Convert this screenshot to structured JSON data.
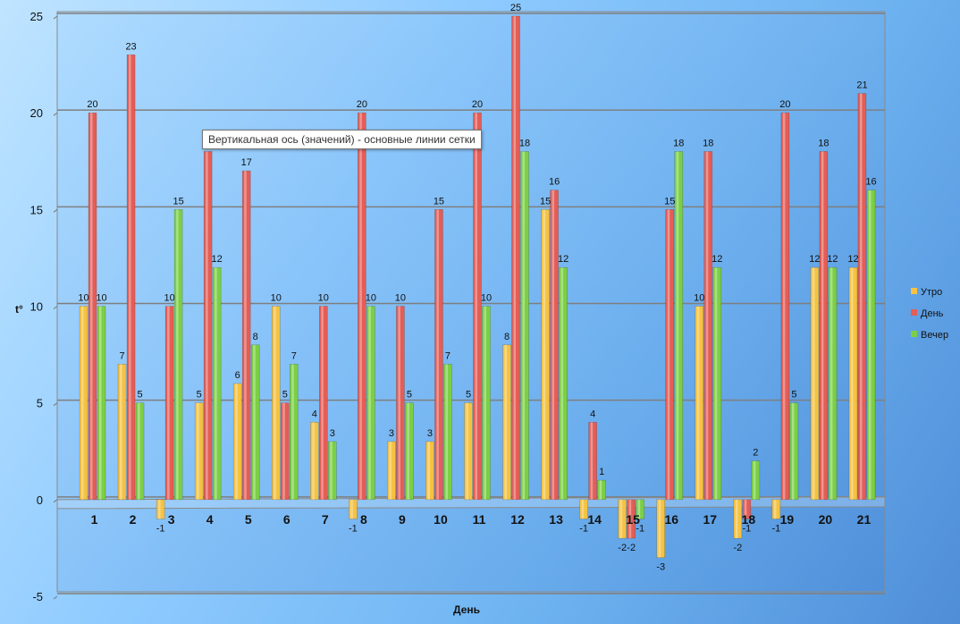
{
  "chart_data": {
    "type": "bar",
    "categories": [
      "1",
      "2",
      "3",
      "4",
      "5",
      "6",
      "7",
      "8",
      "9",
      "10",
      "11",
      "12",
      "13",
      "14",
      "15",
      "16",
      "17",
      "18",
      "19",
      "20",
      "21"
    ],
    "series": [
      {
        "name": "Утро",
        "color": "#f5c242",
        "values": [
          10,
          7,
          -1,
          5,
          6,
          10,
          4,
          -1,
          3,
          3,
          5,
          8,
          15,
          -1,
          -2,
          -3,
          10,
          -2,
          -1,
          12,
          12
        ]
      },
      {
        "name": "День",
        "color": "#e45d56",
        "values": [
          20,
          23,
          10,
          18,
          17,
          5,
          10,
          20,
          10,
          15,
          20,
          25,
          16,
          4,
          -2,
          15,
          18,
          -1,
          20,
          18,
          21
        ]
      },
      {
        "name": "Вечер",
        "color": "#7ccf45",
        "values": [
          10,
          5,
          15,
          12,
          8,
          7,
          3,
          10,
          5,
          7,
          10,
          18,
          12,
          1,
          -1,
          18,
          12,
          2,
          5,
          12,
          16
        ]
      }
    ],
    "ylim": [
      -5,
      25
    ],
    "yticks": [
      -5,
      0,
      5,
      10,
      15,
      20,
      25
    ],
    "xlabel": "День",
    "ylabel": "t°",
    "grid": true,
    "legend": "right"
  },
  "tooltip": "Вертикальная ось (значений)  - основные линии сетки"
}
